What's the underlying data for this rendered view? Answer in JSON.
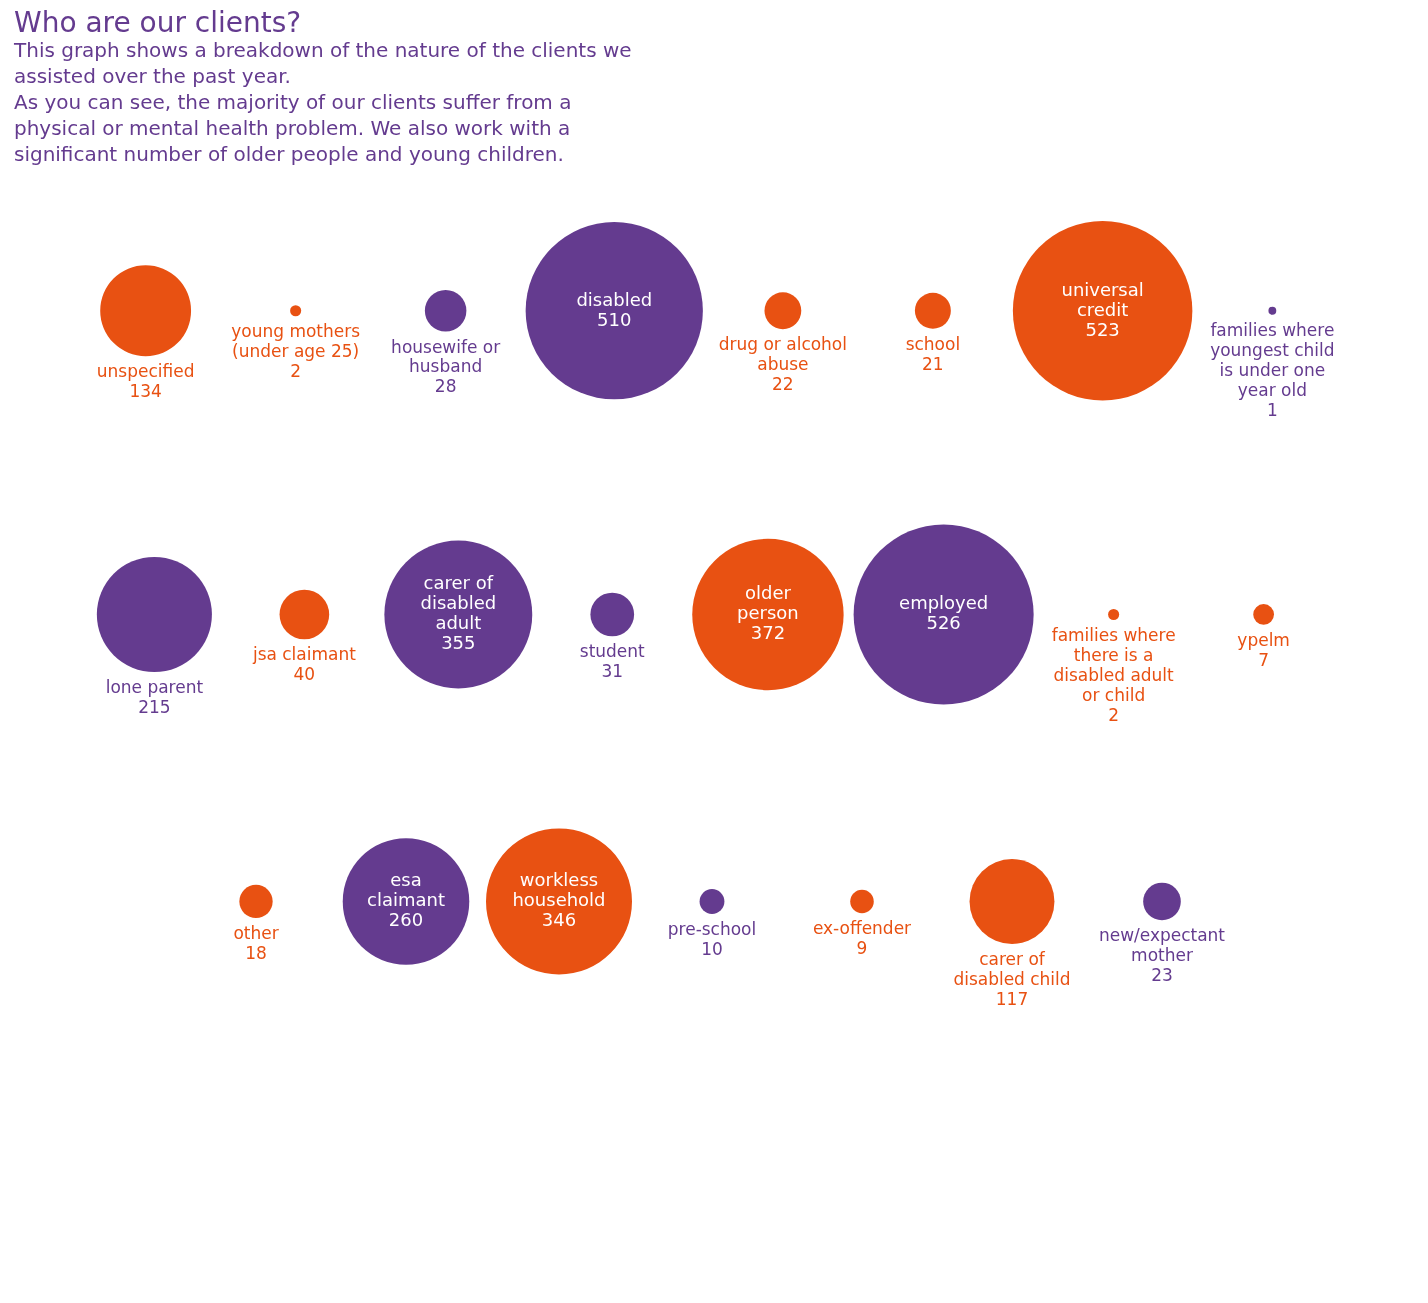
{
  "chart_data": {
    "type": "other",
    "title": "Who are our clients?",
    "annotations": [
      "This graph shows a breakdown of the nature of the clients we assisted over the past year.",
      "As you can see, the majority of our clients suffer from a physical or mental health problem. We also work with a significant number of older people and young children."
    ],
    "categories": [
      "unspecified",
      "young mothers (under age 25)",
      "housewife or husband",
      "disabled",
      "drug or alcohol abuse",
      "school",
      "universal credit",
      "families where youngest child is under one year old",
      "lone parent",
      "jsa claimant",
      "carer of disabled adult",
      "student",
      "older person",
      "employed",
      "families where there is a disabled adult or child",
      "ypelm",
      "other",
      "esa claimant",
      "workless household",
      "pre-school",
      "ex-offender",
      "carer of disabled child",
      "new/expectant mother"
    ],
    "values": [
      134,
      2,
      28,
      510,
      22,
      21,
      523,
      1,
      215,
      40,
      355,
      31,
      372,
      526,
      2,
      7,
      18,
      260,
      346,
      10,
      9,
      117,
      23
    ],
    "colors": [
      "#e85112",
      "#e85112",
      "#643b8f",
      "#643b8f",
      "#e85112",
      "#e85112",
      "#e85112",
      "#643b8f",
      "#643b8f",
      "#e85112",
      "#643b8f",
      "#643b8f",
      "#e85112",
      "#643b8f",
      "#e85112",
      "#e85112",
      "#e85112",
      "#643b8f",
      "#e85112",
      "#643b8f",
      "#e85112",
      "#e85112",
      "#643b8f"
    ],
    "data_labels": true
  }
}
